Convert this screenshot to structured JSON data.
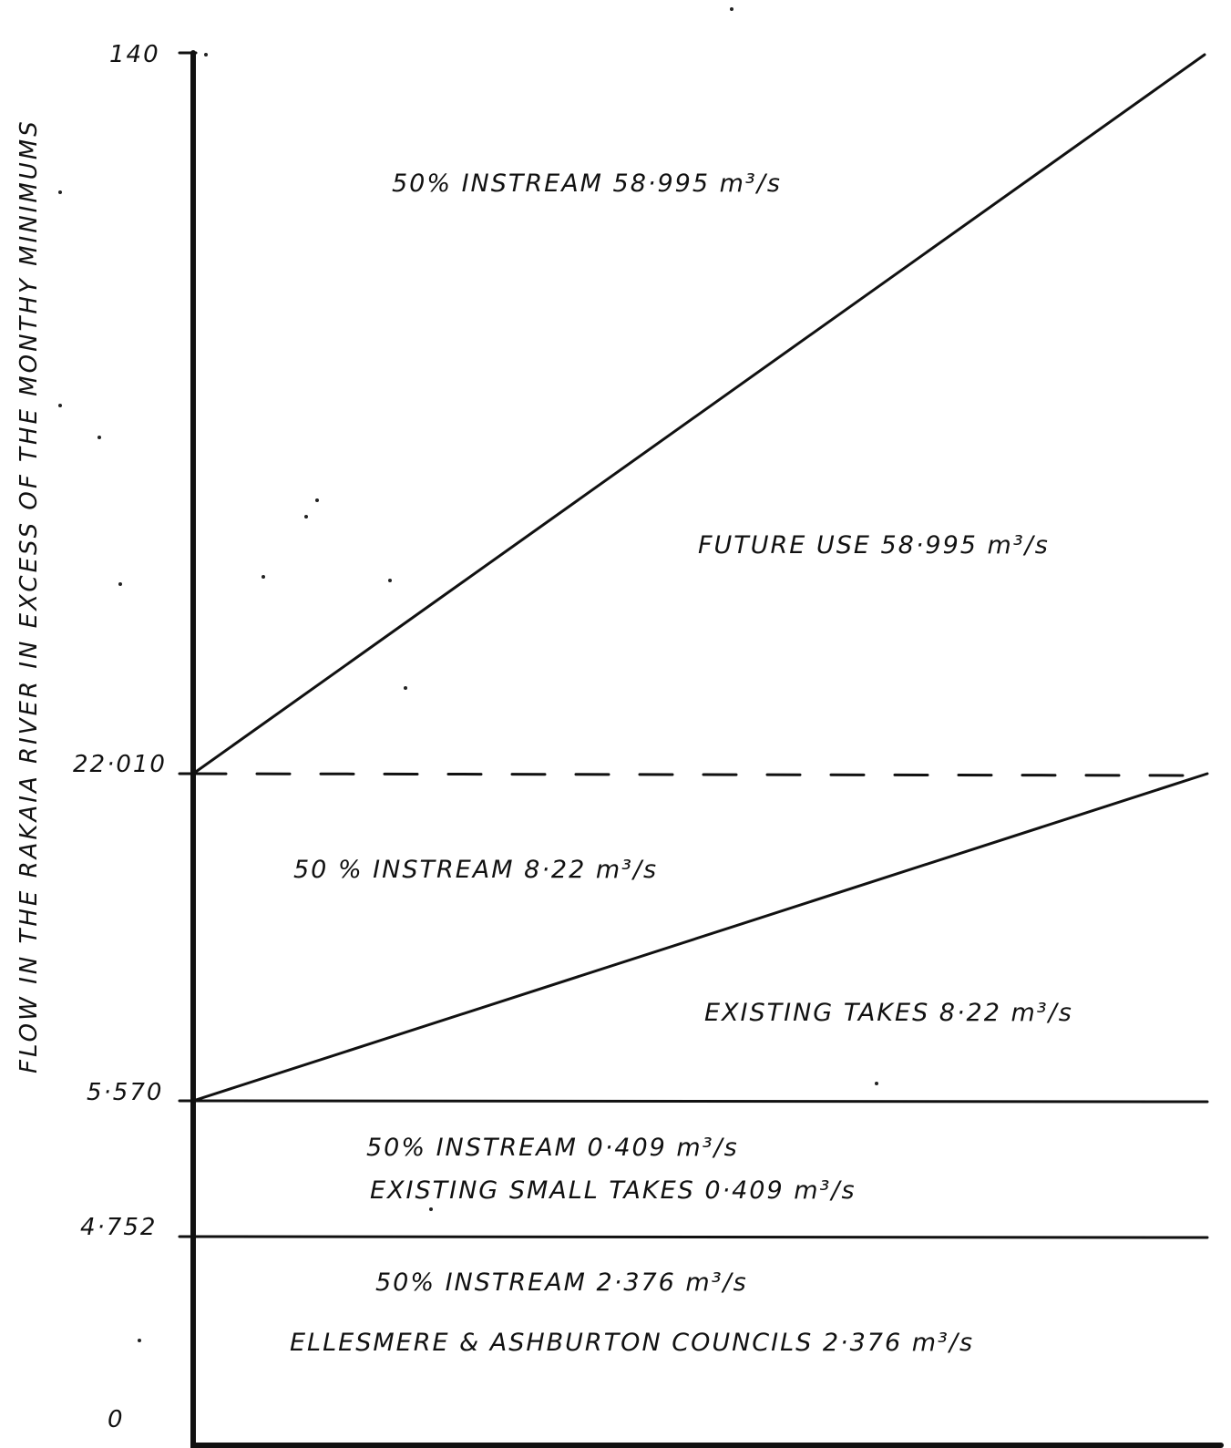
{
  "chart_data": {
    "type": "area",
    "ylabel": "FLOW IN THE RAKAIA RIVER IN EXCESS OF THE MONTHY MINIMUMS",
    "y_ticks": [
      "140",
      "22·010",
      "5·570",
      "4·752",
      "0"
    ],
    "boundaries": [
      {
        "type": "horizontal",
        "value": 4.752
      },
      {
        "type": "horizontal",
        "value": 5.57
      },
      {
        "type": "horizontal",
        "value": 22.01,
        "dashed": true
      },
      {
        "type": "diagonal",
        "from": 5.57,
        "to": 22.01
      },
      {
        "type": "diagonal",
        "from": 22.01,
        "to": 140
      }
    ],
    "regions": [
      {
        "lines": [
          "50%  INSTREAM  58·995 m³/s"
        ]
      },
      {
        "lines": [
          "FUTURE  USE  58·995 m³/s"
        ]
      },
      {
        "lines": [
          "50 %  INSTREAM  8·22 m³/s"
        ]
      },
      {
        "lines": [
          "EXISTING  TAKES  8·22 m³/s"
        ]
      },
      {
        "lines": [
          "50%  INSTREAM  0·409 m³/s",
          "EXISTING  SMALL  TAKES  0·409 m³/s"
        ]
      },
      {
        "lines": [
          "50%  INSTREAM  2·376 m³/s",
          "ELLESMERE & ASHBURTON COUNCILS  2·376 m³/s"
        ]
      }
    ]
  },
  "colors": {
    "ink": "#111111",
    "paper": "#ffffff"
  }
}
